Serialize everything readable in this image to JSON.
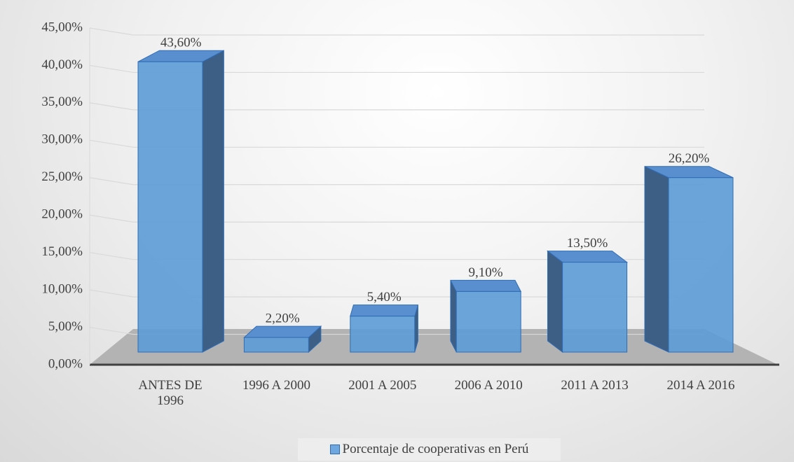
{
  "chart_data": {
    "type": "bar3d",
    "categories": [
      "ANTES DE 1996",
      "1996 A 2000",
      "2001 A 2005",
      "2006 A 2010",
      "2011 A 2013",
      "2014 A 2016"
    ],
    "series": [
      {
        "name": "Porcentaje de cooperativas en Perú",
        "color": "#5b9bd5",
        "values": [
          43.6,
          2.2,
          5.4,
          9.1,
          13.5,
          26.2
        ],
        "value_labels": [
          "43,60%",
          "2,20%",
          "5,40%",
          "9,10%",
          "13,50%",
          "26,20%"
        ]
      }
    ],
    "ylim": [
      0,
      45
    ],
    "yticks": [
      {
        "value": 0,
        "label": "0,00%"
      },
      {
        "value": 5,
        "label": "5,00%"
      },
      {
        "value": 10,
        "label": "10,00%"
      },
      {
        "value": 15,
        "label": "15,00%"
      },
      {
        "value": 20,
        "label": "20,00%"
      },
      {
        "value": 25,
        "label": "25,00%"
      },
      {
        "value": 30,
        "label": "30,00%"
      },
      {
        "value": 35,
        "label": "35,00%"
      },
      {
        "value": 40,
        "label": "40,00%"
      },
      {
        "value": 45,
        "label": "45,00%"
      }
    ],
    "grid": true
  }
}
